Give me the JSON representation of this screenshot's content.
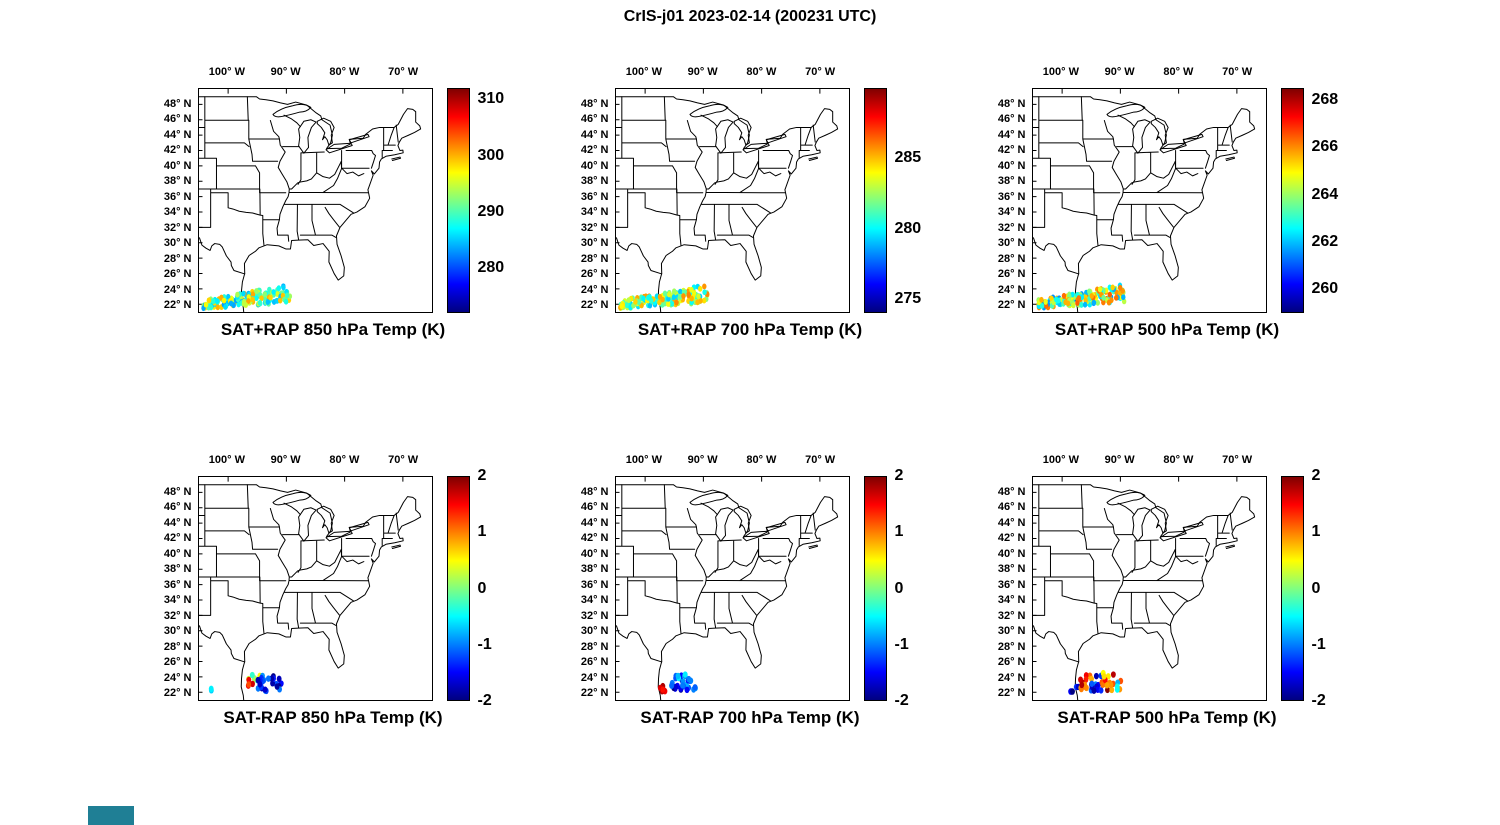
{
  "title": "CrIS-j01 2023-02-14 (200231 UTC)",
  "corner_badge": {
    "color": "#1f7f95"
  },
  "chart_data": {
    "type": "scatter",
    "description_layout": "2x3 grid of US maps with jet colorbars; satellite sounding swath over the Gulf of Mexico near 22-25N",
    "extent": {
      "lon_min": -105,
      "lon_max": -65,
      "lat_min": 21,
      "lat_max": 50
    },
    "lon_ticks": [
      {
        "lon": -100,
        "label": "100° W"
      },
      {
        "lon": -90,
        "label": "90° W"
      },
      {
        "lon": -80,
        "label": "80° W"
      },
      {
        "lon": -70,
        "label": "70° W"
      }
    ],
    "lat_ticks": [
      {
        "lat": 48,
        "label": "48° N"
      },
      {
        "lat": 46,
        "label": "46° N"
      },
      {
        "lat": 44,
        "label": "44° N"
      },
      {
        "lat": 42,
        "label": "42° N"
      },
      {
        "lat": 40,
        "label": "40° N"
      },
      {
        "lat": 38,
        "label": "38° N"
      },
      {
        "lat": 36,
        "label": "36° N"
      },
      {
        "lat": 34,
        "label": "34° N"
      },
      {
        "lat": 32,
        "label": "32° N"
      },
      {
        "lat": 30,
        "label": "30° N"
      },
      {
        "lat": 28,
        "label": "28° N"
      },
      {
        "lat": 26,
        "label": "26° N"
      },
      {
        "lat": 24,
        "label": "24° N"
      },
      {
        "lat": 22,
        "label": "22° N"
      }
    ],
    "panels": [
      {
        "id": "sat_plus_rap_850",
        "title": "SAT+RAP 850 hPa Temp (K)",
        "colorbar": {
          "min": 272,
          "max": 312,
          "ticks": [
            310,
            300,
            290,
            280
          ]
        },
        "scatter": {
          "seed": 11,
          "clusters": [
            {
              "shape": "swath",
              "lon0": -104.3,
              "lon1": -89.3,
              "lat0": 22.0,
              "lat1": 23.4,
              "w0": 0.55,
              "w1": 1.15,
              "n": 170,
              "vmin": 283,
              "vmax": 301,
              "r": 3.8
            }
          ]
        }
      },
      {
        "id": "sat_plus_rap_700",
        "title": "SAT+RAP 700 hPa Temp (K)",
        "colorbar": {
          "min": 274,
          "max": 290,
          "ticks": [
            285,
            280,
            275
          ]
        },
        "scatter": {
          "seed": 22,
          "clusters": [
            {
              "shape": "swath",
              "lon0": -104.3,
              "lon1": -89.3,
              "lat0": 22.0,
              "lat1": 23.4,
              "w0": 0.55,
              "w1": 1.15,
              "n": 170,
              "vmin": 279,
              "vmax": 286,
              "r": 3.8
            }
          ]
        }
      },
      {
        "id": "sat_plus_rap_500",
        "title": "SAT+RAP 500 hPa Temp (K)",
        "colorbar": {
          "min": 259,
          "max": 268.5,
          "ticks": [
            268,
            266,
            264,
            262,
            260
          ]
        },
        "scatter": {
          "seed": 33,
          "clusters": [
            {
              "shape": "swath",
              "lon0": -104.3,
              "lon1": -89.3,
              "lat0": 22.0,
              "lat1": 23.4,
              "w0": 0.55,
              "w1": 1.15,
              "n": 170,
              "vmin": 261.5,
              "vmax": 266.5,
              "r": 3.8
            }
          ]
        }
      },
      {
        "id": "sat_minus_rap_850",
        "title": "SAT-RAP 850 hPa Temp (K)",
        "colorbar": {
          "min": -2,
          "max": 2,
          "ticks": [
            2,
            1,
            0,
            -1,
            -2
          ]
        },
        "scatter": {
          "seed": 44,
          "clusters": [
            {
              "shape": "box",
              "lon0": -103.3,
              "lon1": -102.8,
              "lat0": 22.2,
              "lat1": 22.6,
              "n": 2,
              "vmin": -0.7,
              "vmax": -0.4,
              "r": 4.2
            },
            {
              "shape": "box",
              "lon0": -96.5,
              "lon1": -94.5,
              "lat0": 23.3,
              "lat1": 24.3,
              "n": 6,
              "vmin": -0.4,
              "vmax": 0.7,
              "r": 4.2
            },
            {
              "shape": "box",
              "lon0": -96.8,
              "lon1": -95.8,
              "lat0": 22.7,
              "lat1": 23.6,
              "n": 4,
              "vmin": 1.2,
              "vmax": 2.0,
              "r": 4.2
            },
            {
              "shape": "box",
              "lon0": -95.2,
              "lon1": -90.6,
              "lat0": 22.1,
              "lat1": 24.2,
              "n": 26,
              "vmin": -2.0,
              "vmax": -0.9,
              "r": 4.2
            }
          ]
        }
      },
      {
        "id": "sat_minus_rap_700",
        "title": "SAT-RAP 700 hPa Temp (K)",
        "colorbar": {
          "min": -2,
          "max": 2,
          "ticks": [
            2,
            1,
            0,
            -1,
            -2
          ]
        },
        "scatter": {
          "seed": 55,
          "clusters": [
            {
              "shape": "box",
              "lon0": -97.5,
              "lon1": -96.3,
              "lat0": 22.1,
              "lat1": 22.9,
              "n": 6,
              "vmin": 1.4,
              "vmax": 2.0,
              "r": 4.2
            },
            {
              "shape": "box",
              "lon0": -95.6,
              "lon1": -91.0,
              "lat0": 22.2,
              "lat1": 24.2,
              "n": 26,
              "vmin": -2.0,
              "vmax": -0.8,
              "r": 4.2
            },
            {
              "shape": "box",
              "lon0": -94.4,
              "lon1": -92.8,
              "lat0": 23.7,
              "lat1": 24.4,
              "n": 5,
              "vmin": -1.1,
              "vmax": -0.1,
              "r": 4.2
            }
          ]
        }
      },
      {
        "id": "sat_minus_rap_500",
        "title": "SAT-RAP 500 hPa Temp (K)",
        "colorbar": {
          "min": -2,
          "max": 2,
          "ticks": [
            2,
            1,
            0,
            -1,
            -2
          ]
        },
        "scatter": {
          "seed": 66,
          "clusters": [
            {
              "shape": "box",
              "lon0": -98.6,
              "lon1": -97.2,
              "lat0": 22.1,
              "lat1": 23.1,
              "n": 5,
              "vmin": -2.0,
              "vmax": -1.2,
              "r": 4.2
            },
            {
              "shape": "box",
              "lon0": -97.2,
              "lon1": -94.9,
              "lat0": 22.2,
              "lat1": 24.2,
              "n": 13,
              "vmin": 0.6,
              "vmax": 2.0,
              "r": 4.2
            },
            {
              "shape": "box",
              "lon0": -95.1,
              "lon1": -93.0,
              "lat0": 22.2,
              "lat1": 24.3,
              "n": 13,
              "vmin": -2.0,
              "vmax": -0.8,
              "r": 4.2
            },
            {
              "shape": "box",
              "lon0": -93.2,
              "lon1": -89.8,
              "lat0": 22.3,
              "lat1": 24.5,
              "n": 16,
              "vmin": 0.2,
              "vmax": 2.0,
              "r": 4.2
            },
            {
              "shape": "box",
              "lon0": -91.4,
              "lon1": -90.3,
              "lat0": 22.3,
              "lat1": 23.3,
              "n": 3,
              "vmin": -1.0,
              "vmax": -0.3,
              "r": 4.2
            }
          ]
        }
      }
    ]
  }
}
